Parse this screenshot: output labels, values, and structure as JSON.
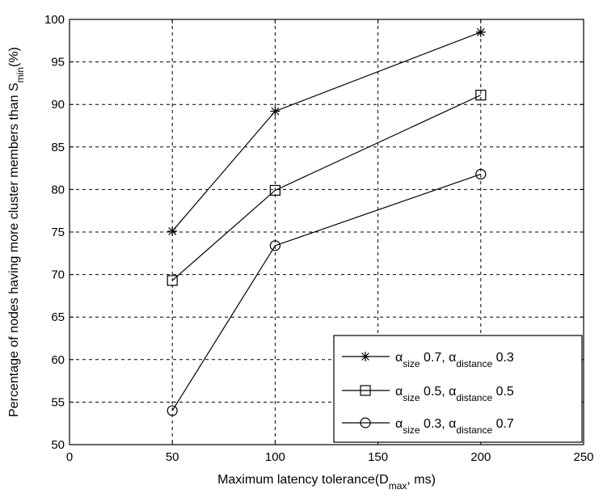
{
  "chart_data": {
    "type": "line",
    "title": "",
    "xlabel": {
      "main": "Maximum latency tolerance(D",
      "sub": "max",
      "tail": ", ms)"
    },
    "ylabel": {
      "main": "Percentage of nodes having more cluster members than S",
      "sub": "min",
      "tail": "(%)"
    },
    "xlim": [
      0,
      250
    ],
    "ylim": [
      50,
      100
    ],
    "xticks": [
      0,
      50,
      100,
      150,
      200,
      250
    ],
    "yticks": [
      50,
      55,
      60,
      65,
      70,
      75,
      80,
      85,
      90,
      95,
      100
    ],
    "grid": true,
    "legend_position": "bottom-right",
    "x": [
      50,
      100,
      200
    ],
    "series": [
      {
        "marker": "star",
        "values": [
          75.1,
          89.2,
          98.5
        ],
        "legend": {
          "a": "α",
          "a_sub": "size",
          "mid": " 0.7, ",
          "b": "α",
          "b_sub": "distance",
          "end": " 0.3"
        }
      },
      {
        "marker": "square",
        "values": [
          69.3,
          79.9,
          91.1
        ],
        "legend": {
          "a": "α",
          "a_sub": "size",
          "mid": " 0.5, ",
          "b": "α",
          "b_sub": "distance",
          "end": " 0.5"
        }
      },
      {
        "marker": "circle",
        "values": [
          54.0,
          73.4,
          81.8
        ],
        "legend": {
          "a": "α",
          "a_sub": "size",
          "mid": " 0.3, ",
          "b": "α",
          "b_sub": "distance",
          "end": " 0.7"
        }
      }
    ]
  }
}
